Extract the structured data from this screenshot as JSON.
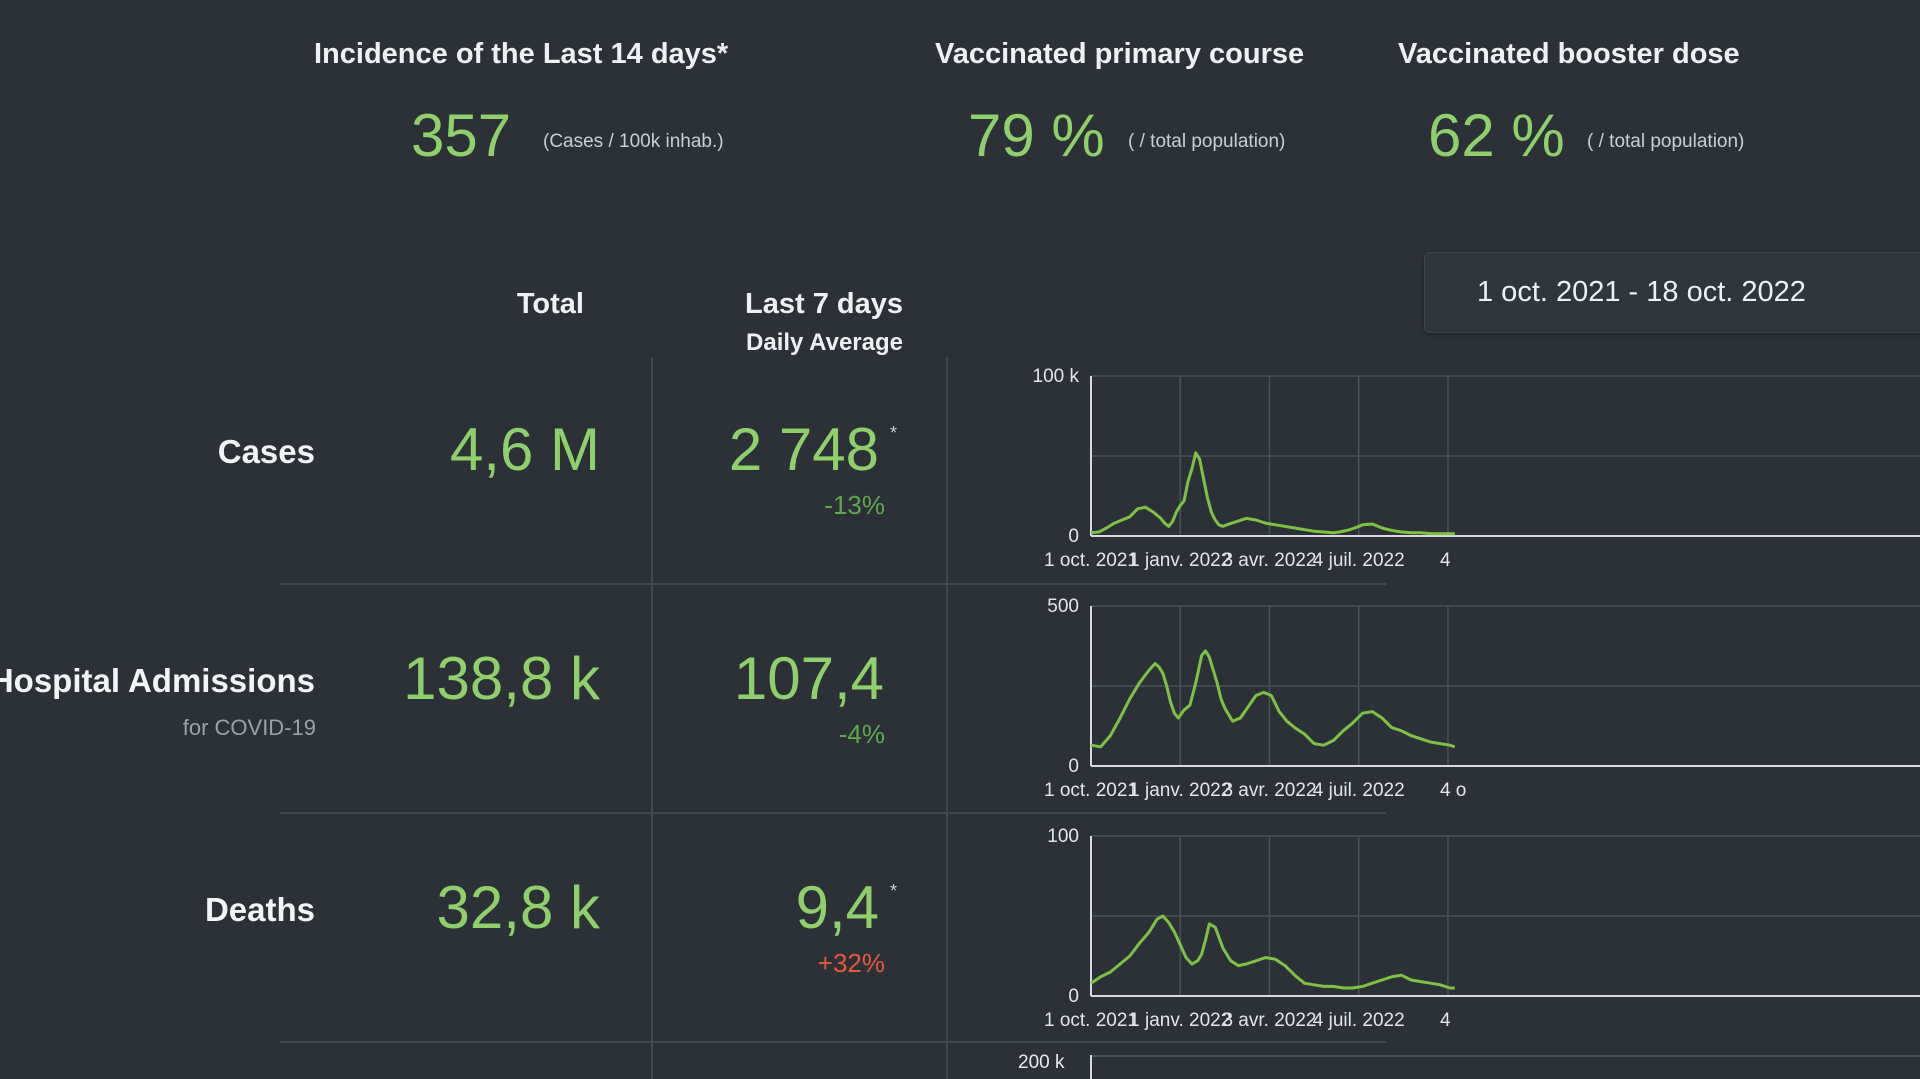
{
  "kpis": [
    {
      "title": "Incidence of the Last 14 days*",
      "value": "357",
      "unit": "(Cases / 100k inhab.)"
    },
    {
      "title": "Vaccinated primary course",
      "value": "79 %",
      "unit": "( / total population)"
    },
    {
      "title": "Vaccinated booster dose",
      "value": "62 %",
      "unit": "( / total population)"
    }
  ],
  "date_range": "1 oct. 2021 - 18 oct. 2022",
  "table_headers": {
    "total": "Total",
    "last7": "Last 7 days",
    "last7_sub": "Daily Average"
  },
  "rows": [
    {
      "label": "Cases",
      "sub": "",
      "total": "4,6 M",
      "avg": "2 748",
      "star": "*",
      "change": "-13%"
    },
    {
      "label": "Hospital Admissions",
      "sub": "for COVID-19",
      "total": "138,8 k",
      "avg": "107,4",
      "star": "",
      "change": "-4%"
    },
    {
      "label": "Deaths",
      "sub": "",
      "total": "32,8 k",
      "avg": "9,4",
      "star": "*",
      "change": "+32%"
    }
  ],
  "colors": {
    "positive": "#5ea84c",
    "negative": "#e8583a",
    "line": "#7dc242",
    "value": "#8ed16a"
  },
  "chart_data": [
    {
      "type": "line",
      "x_ticks": [
        "1 oct. 2021",
        "1 janv. 2022",
        "3 avr. 2022",
        "4 juil. 2022",
        "4"
      ],
      "y_ticks": [
        "0",
        "100 k"
      ],
      "ylim": [
        0,
        100000
      ],
      "grid": true,
      "x_days": [
        0,
        8,
        16,
        24,
        32,
        40,
        48,
        56,
        64,
        72,
        76,
        80,
        84,
        88,
        92,
        96,
        100,
        104,
        108,
        112,
        116,
        120,
        124,
        128,
        132,
        136,
        140,
        150,
        160,
        170,
        180,
        190,
        200,
        210,
        220,
        230,
        240,
        250,
        256,
        264,
        272,
        280,
        290,
        300,
        310,
        320,
        330,
        340,
        350,
        360,
        367,
        375
      ],
      "values": [
        2000,
        2500,
        5000,
        8000,
        10000,
        12000,
        17000,
        18000,
        15000,
        11000,
        8000,
        6000,
        9000,
        15000,
        19000,
        22000,
        34000,
        42000,
        52000,
        48000,
        36000,
        24000,
        15000,
        10000,
        7000,
        6000,
        7000,
        9000,
        11000,
        10000,
        8000,
        7000,
        6000,
        5000,
        4000,
        3000,
        2500,
        2000,
        2500,
        3500,
        5000,
        7000,
        7500,
        5000,
        3500,
        2500,
        2000,
        2000,
        1500,
        1500,
        1500,
        1500
      ]
    },
    {
      "type": "line",
      "x_ticks": [
        "1 oct. 2021",
        "1 janv. 2022",
        "3 avr. 2022",
        "4 juil. 2022",
        "4 o"
      ],
      "y_ticks": [
        "0",
        "500"
      ],
      "ylim": [
        0,
        500
      ],
      "grid": true,
      "x_days": [
        0,
        10,
        20,
        30,
        40,
        50,
        60,
        66,
        70,
        74,
        78,
        82,
        86,
        90,
        96,
        102,
        108,
        114,
        118,
        122,
        126,
        130,
        134,
        138,
        146,
        154,
        162,
        170,
        178,
        186,
        194,
        202,
        210,
        220,
        230,
        240,
        250,
        260,
        270,
        280,
        290,
        300,
        310,
        320,
        330,
        340,
        350,
        360,
        370,
        375
      ],
      "values": [
        65,
        60,
        95,
        150,
        210,
        260,
        300,
        320,
        310,
        290,
        250,
        200,
        165,
        150,
        175,
        190,
        260,
        345,
        360,
        340,
        300,
        260,
        210,
        180,
        140,
        150,
        185,
        220,
        230,
        220,
        170,
        140,
        120,
        100,
        70,
        65,
        80,
        110,
        135,
        165,
        170,
        150,
        120,
        110,
        95,
        85,
        75,
        70,
        65,
        60
      ]
    },
    {
      "type": "line",
      "x_ticks": [
        "1 oct. 2021",
        "1 janv. 2022",
        "3 avr. 2022",
        "4 juil. 2022",
        "4"
      ],
      "y_ticks": [
        "0",
        "100"
      ],
      "ylim": [
        0,
        100
      ],
      "grid": true,
      "x_days": [
        0,
        10,
        20,
        30,
        40,
        50,
        60,
        68,
        74,
        80,
        86,
        92,
        98,
        104,
        110,
        114,
        118,
        122,
        128,
        136,
        144,
        152,
        160,
        170,
        180,
        190,
        200,
        210,
        220,
        230,
        240,
        250,
        260,
        270,
        280,
        290,
        300,
        310,
        320,
        330,
        340,
        350,
        360,
        370,
        375
      ],
      "values": [
        8,
        12,
        15,
        20,
        25,
        33,
        40,
        48,
        50,
        46,
        40,
        32,
        24,
        20,
        22,
        26,
        35,
        45,
        43,
        30,
        22,
        19,
        20,
        22,
        24,
        23,
        19,
        13,
        8,
        7,
        6,
        6,
        5,
        5,
        6,
        8,
        10,
        12,
        13,
        10,
        9,
        8,
        7,
        5,
        5
      ]
    }
  ],
  "fourth_chart_label": "200 k"
}
